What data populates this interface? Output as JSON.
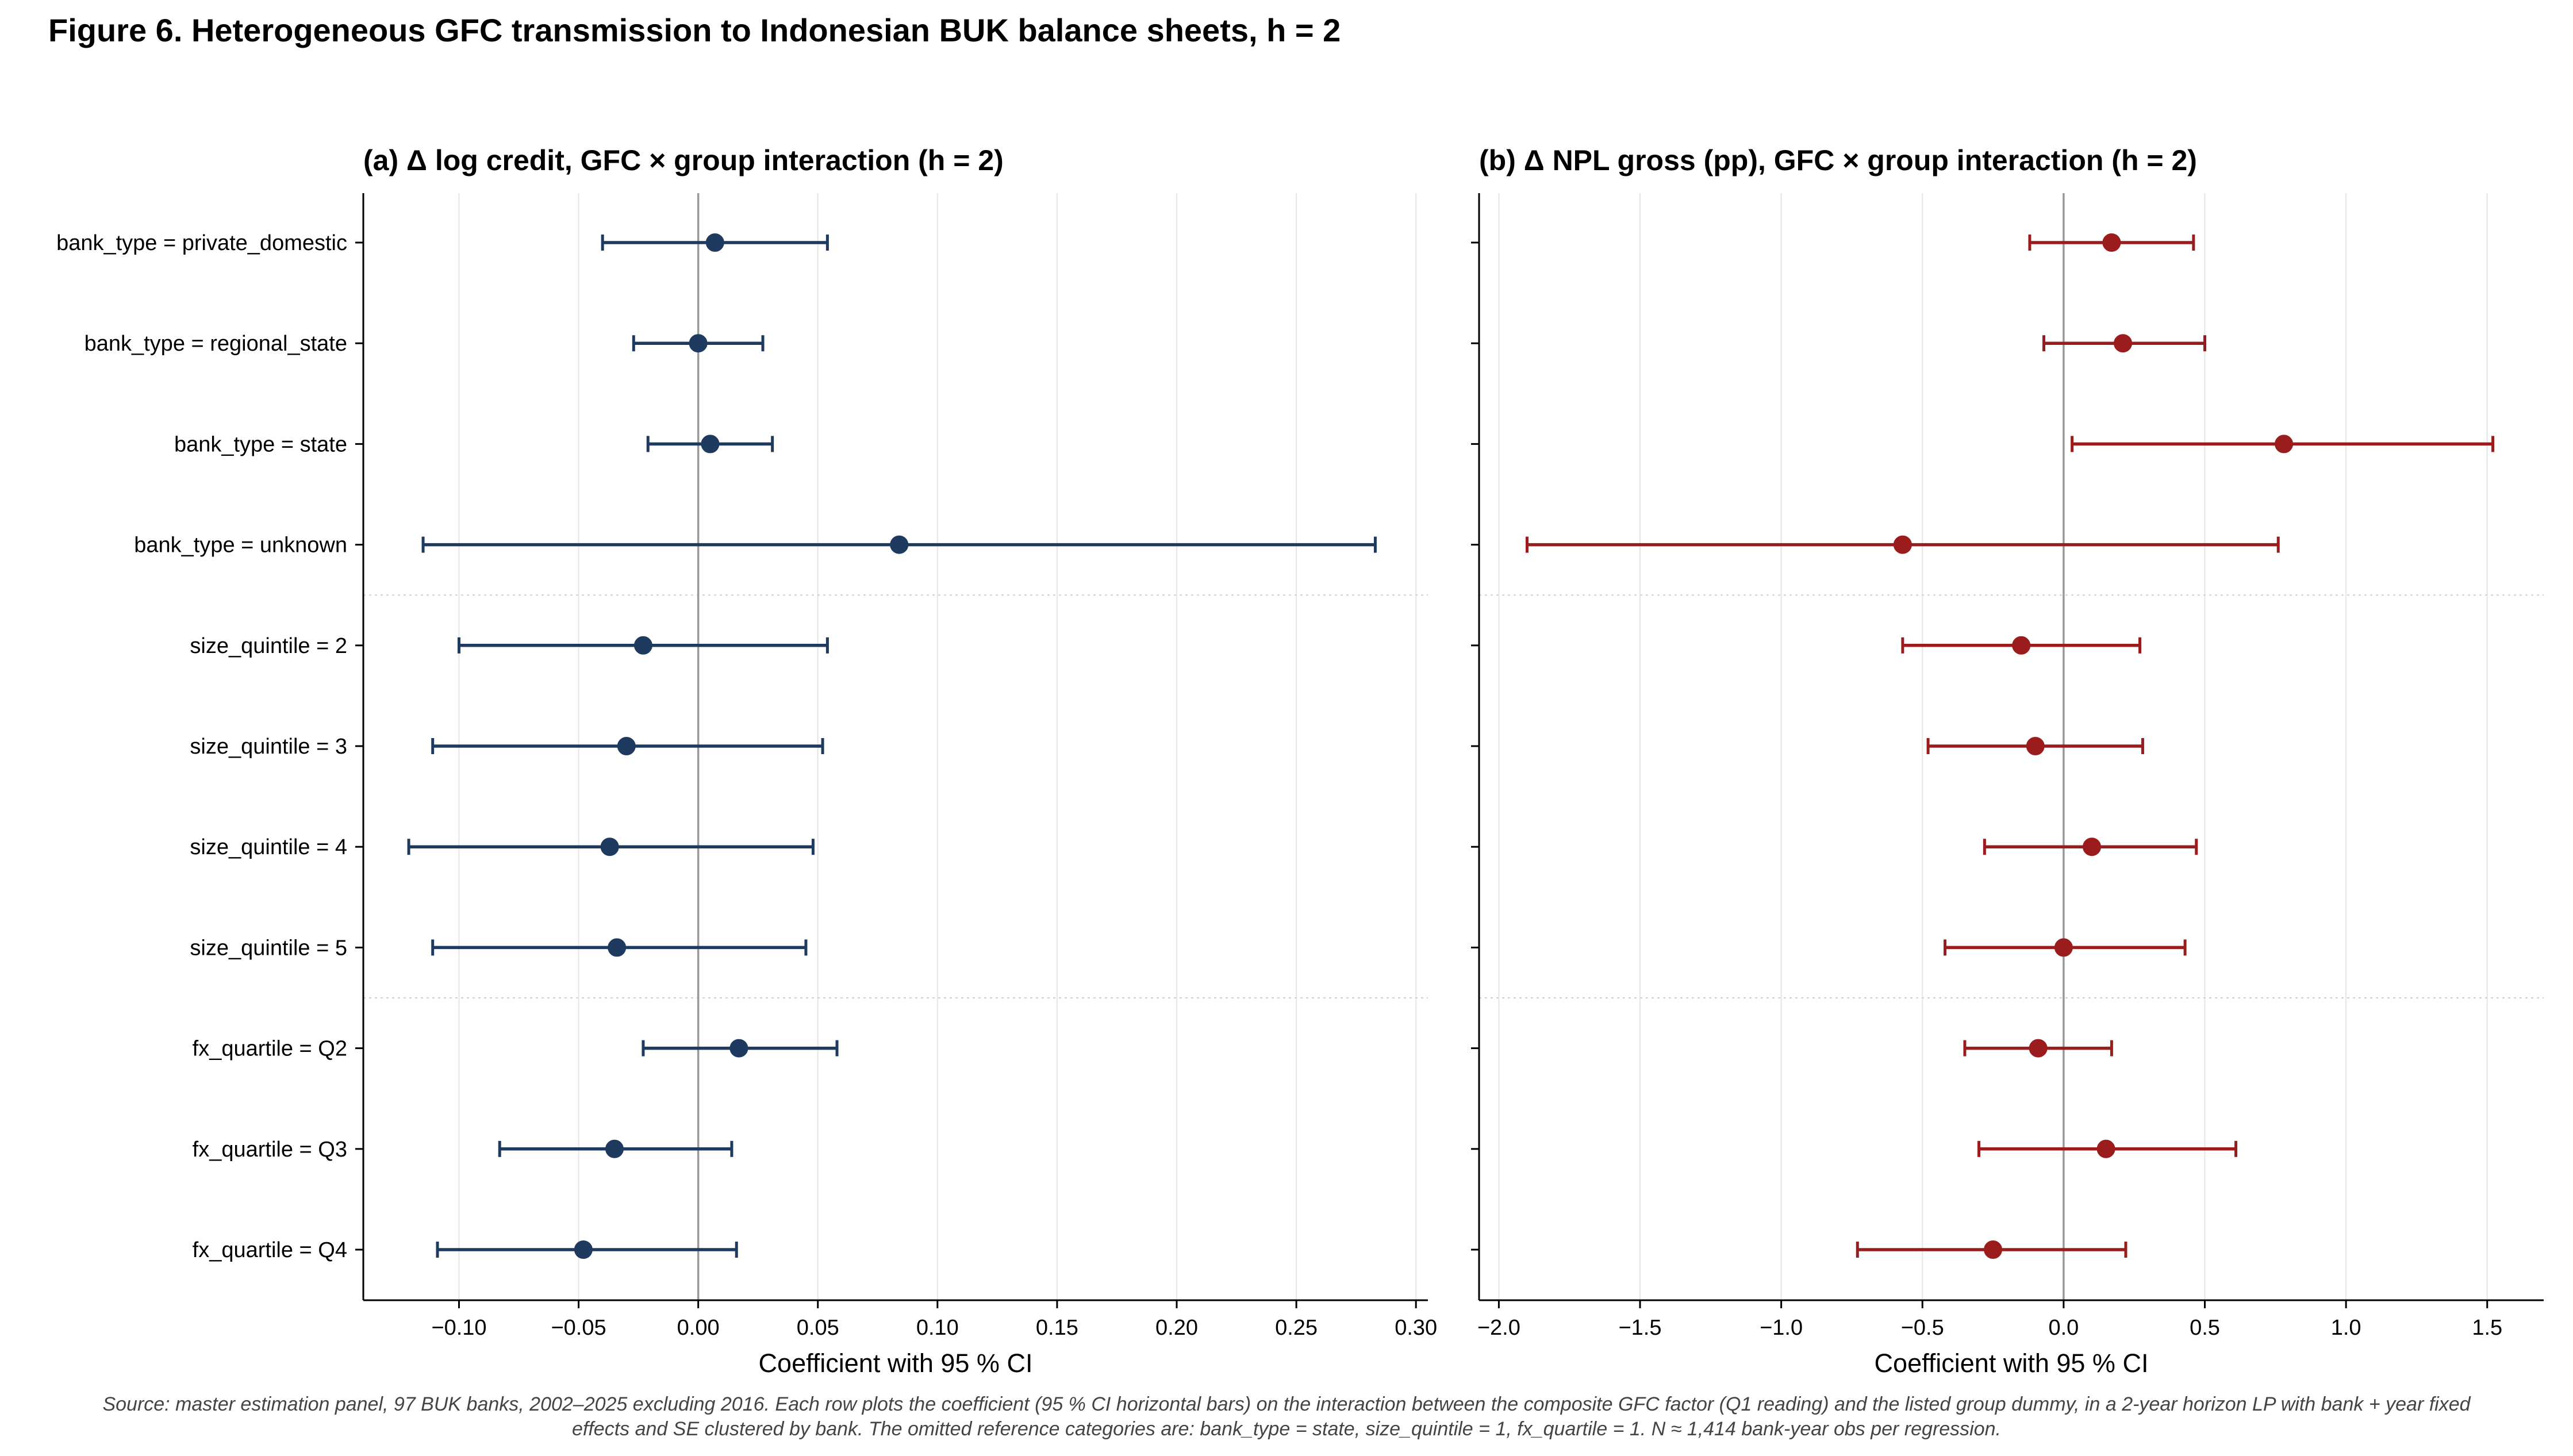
{
  "figure_title": "Figure 6.  Heterogeneous GFC transmission to Indonesian BUK balance sheets, h = 2",
  "source_note": [
    "Source: master estimation panel, 97 BUK banks, 2002–2025 excluding 2016. Each row plots the coefficient (95 % CI horizontal bars) on the interaction between the composite GFC factor (Q1 reading) and the listed group dummy, in a 2-year horizon LP with bank + year fixed",
    "effects and SE clustered by bank. The omitted reference categories are: bank_type = state, size_quintile = 1, fx_quartile = 1. N ≈ 1,414 bank-year obs per regression."
  ],
  "colors": {
    "credit": "#1f3a5f",
    "npl": "#9b1c1c",
    "zero_line": "#999999",
    "grid": "#e6e6e6",
    "separator": "#d0d0d0"
  },
  "chart_data": [
    {
      "type": "scatter",
      "title": "(a) Δ log credit, GFC × group interaction (h = 2)",
      "xlabel": "Coefficient with 95 % CI",
      "ylabel": "",
      "xlim": [
        -0.14,
        0.305
      ],
      "xticks": [
        -0.1,
        -0.05,
        0.0,
        0.05,
        0.1,
        0.15,
        0.2,
        0.25,
        0.3
      ],
      "xtick_labels": [
        "−0.10",
        "−0.05",
        "0.00",
        "0.05",
        "0.10",
        "0.15",
        "0.20",
        "0.25",
        "0.30"
      ],
      "grid": true,
      "categories": [
        "bank_type = private_domestic",
        "bank_type = regional_state",
        "bank_type = state",
        "bank_type = unknown",
        "size_quintile = 2",
        "size_quintile = 3",
        "size_quintile = 4",
        "size_quintile = 5",
        "fx_quartile = Q2",
        "fx_quartile = Q3",
        "fx_quartile = Q4"
      ],
      "values": [
        0.007,
        0.0,
        0.005,
        0.084,
        -0.023,
        -0.03,
        -0.037,
        -0.034,
        0.017,
        -0.035,
        -0.048
      ],
      "ci_low": [
        -0.04,
        -0.027,
        -0.021,
        -0.115,
        -0.1,
        -0.111,
        -0.121,
        -0.111,
        -0.023,
        -0.083,
        -0.109
      ],
      "ci_high": [
        0.054,
        0.027,
        0.031,
        0.283,
        0.054,
        0.052,
        0.048,
        0.045,
        0.058,
        0.014,
        0.016
      ],
      "group_separators_after": [
        3,
        7
      ]
    },
    {
      "type": "scatter",
      "title": "(b) Δ NPL gross (pp), GFC × group interaction (h = 2)",
      "xlabel": "Coefficient with 95 % CI",
      "ylabel": "",
      "xlim": [
        -2.07,
        1.7
      ],
      "xticks": [
        -2.0,
        -1.5,
        -1.0,
        -0.5,
        0.0,
        0.5,
        1.0,
        1.5
      ],
      "xtick_labels": [
        "−2.0",
        "−1.5",
        "−1.0",
        "−0.5",
        "0.0",
        "0.5",
        "1.0",
        "1.5"
      ],
      "grid": true,
      "categories": [
        "bank_type = private_domestic",
        "bank_type = regional_state",
        "bank_type = state",
        "bank_type = unknown",
        "size_quintile = 2",
        "size_quintile = 3",
        "size_quintile = 4",
        "size_quintile = 5",
        "fx_quartile = Q2",
        "fx_quartile = Q3",
        "fx_quartile = Q4"
      ],
      "values": [
        0.17,
        0.21,
        0.78,
        -0.57,
        -0.15,
        -0.1,
        0.1,
        0.0,
        -0.09,
        0.15,
        -0.25
      ],
      "ci_low": [
        -0.12,
        -0.07,
        0.03,
        -1.9,
        -0.57,
        -0.48,
        -0.28,
        -0.42,
        -0.35,
        -0.3,
        -0.73
      ],
      "ci_high": [
        0.46,
        0.5,
        1.52,
        0.76,
        0.27,
        0.28,
        0.47,
        0.43,
        0.17,
        0.61,
        0.22
      ],
      "group_separators_after": [
        3,
        7
      ]
    }
  ]
}
